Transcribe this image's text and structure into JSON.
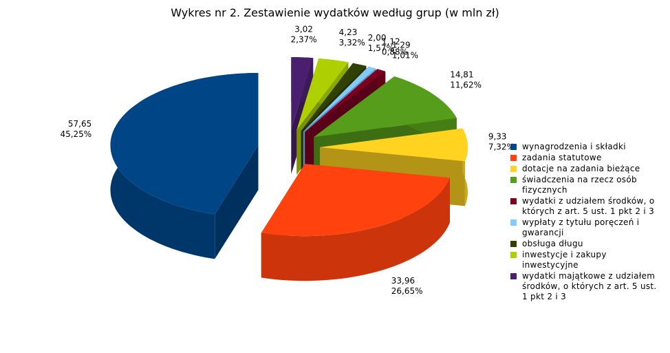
{
  "chart_data": {
    "type": "pie3d",
    "title": "Wykres nr 2. Zestawienie wydatków według grup (w mln zł)",
    "categories": [
      "wynagrodzenia i składki",
      "zadania statutowe",
      "dotacje na zadania bieżące",
      "świadczenia na rzecz osób fizycznych",
      "wydatki z udziałem środków, o których z art. 5 ust. 1 pkt 2 i 3",
      "wypłaty z tytułu poręczeń i gwarancji",
      "obsługa długu",
      "inwestycje i zakupy inwestycyjne",
      "wydatki majątkowe z udziałem środków, o których z art. 5 ust. 1 pkt 2 i 3"
    ],
    "values": [
      57.65,
      33.96,
      9.33,
      14.81,
      1.29,
      1.12,
      2.0,
      4.23,
      3.02
    ],
    "value_labels": [
      "57,65",
      "33,96",
      "9,33",
      "14,81",
      "1,29",
      "1,12",
      "2,00",
      "4,23",
      "3,02"
    ],
    "percentages": [
      45.25,
      26.65,
      7.32,
      11.62,
      1.01,
      0.88,
      1.57,
      3.32,
      2.37
    ],
    "percentage_labels": [
      "45,25%",
      "26,65%",
      "7,32%",
      "11,62%",
      "1,01%",
      "0,88%",
      "1,57%",
      "3,32%",
      "2,37%"
    ],
    "colors": [
      "#004586",
      "#ff420e",
      "#ffd320",
      "#579d1c",
      "#7e0021",
      "#83caff",
      "#314004",
      "#aecf00",
      "#4b1f6f"
    ]
  }
}
